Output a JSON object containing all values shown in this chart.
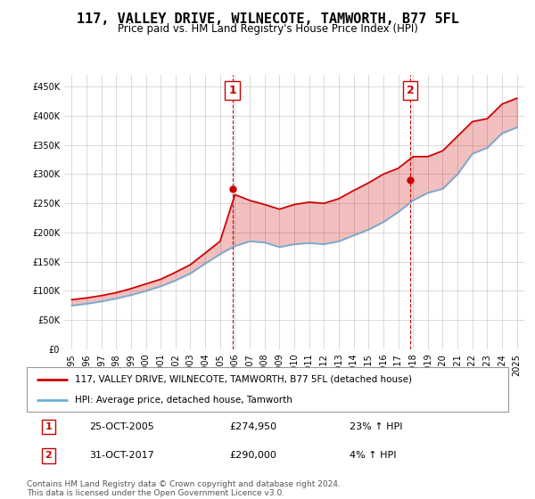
{
  "title": "117, VALLEY DRIVE, WILNECOTE, TAMWORTH, B77 5FL",
  "subtitle": "Price paid vs. HM Land Registry's House Price Index (HPI)",
  "legend_line1": "117, VALLEY DRIVE, WILNECOTE, TAMWORTH, B77 5FL (detached house)",
  "legend_line2": "HPI: Average price, detached house, Tamworth",
  "footnote": "Contains HM Land Registry data © Crown copyright and database right 2024.\nThis data is licensed under the Open Government Licence v3.0.",
  "marker1_label": "1",
  "marker1_date": "25-OCT-2005",
  "marker1_price": "£274,950",
  "marker1_hpi": "23% ↑ HPI",
  "marker2_label": "2",
  "marker2_date": "31-OCT-2017",
  "marker2_price": "£290,000",
  "marker2_hpi": "4% ↑ HPI",
  "hpi_color": "#6baed6",
  "price_color": "#cc0000",
  "marker_color": "#cc0000",
  "background_color": "#ffffff",
  "grid_color": "#cccccc",
  "ylim": [
    0,
    470000
  ],
  "yticks": [
    0,
    50000,
    100000,
    150000,
    200000,
    250000,
    300000,
    350000,
    400000,
    450000
  ],
  "years": [
    1995,
    1996,
    1997,
    1998,
    1999,
    2000,
    2001,
    2002,
    2003,
    2004,
    2005,
    2006,
    2007,
    2008,
    2009,
    2010,
    2011,
    2012,
    2013,
    2014,
    2015,
    2016,
    2017,
    2018,
    2019,
    2020,
    2021,
    2022,
    2023,
    2024,
    2025
  ],
  "hpi_values": [
    75000,
    78000,
    82000,
    87000,
    93000,
    100000,
    108000,
    118000,
    130000,
    147000,
    163000,
    177000,
    185000,
    183000,
    175000,
    180000,
    182000,
    180000,
    185000,
    195000,
    205000,
    218000,
    235000,
    255000,
    268000,
    275000,
    300000,
    335000,
    345000,
    370000,
    380000
  ],
  "price_values": [
    85000,
    88000,
    92000,
    97000,
    104000,
    112000,
    120000,
    132000,
    145000,
    165000,
    185000,
    265000,
    255000,
    248000,
    240000,
    248000,
    252000,
    250000,
    258000,
    272000,
    285000,
    300000,
    310000,
    330000,
    330000,
    340000,
    365000,
    390000,
    395000,
    420000,
    430000
  ],
  "marker1_x": 2005.83,
  "marker1_y": 274950,
  "marker2_x": 2017.83,
  "marker2_y": 290000,
  "marker1_vline_x": 2005.83,
  "marker2_vline_x": 2017.83,
  "xlim": [
    1994.5,
    2025.5
  ]
}
